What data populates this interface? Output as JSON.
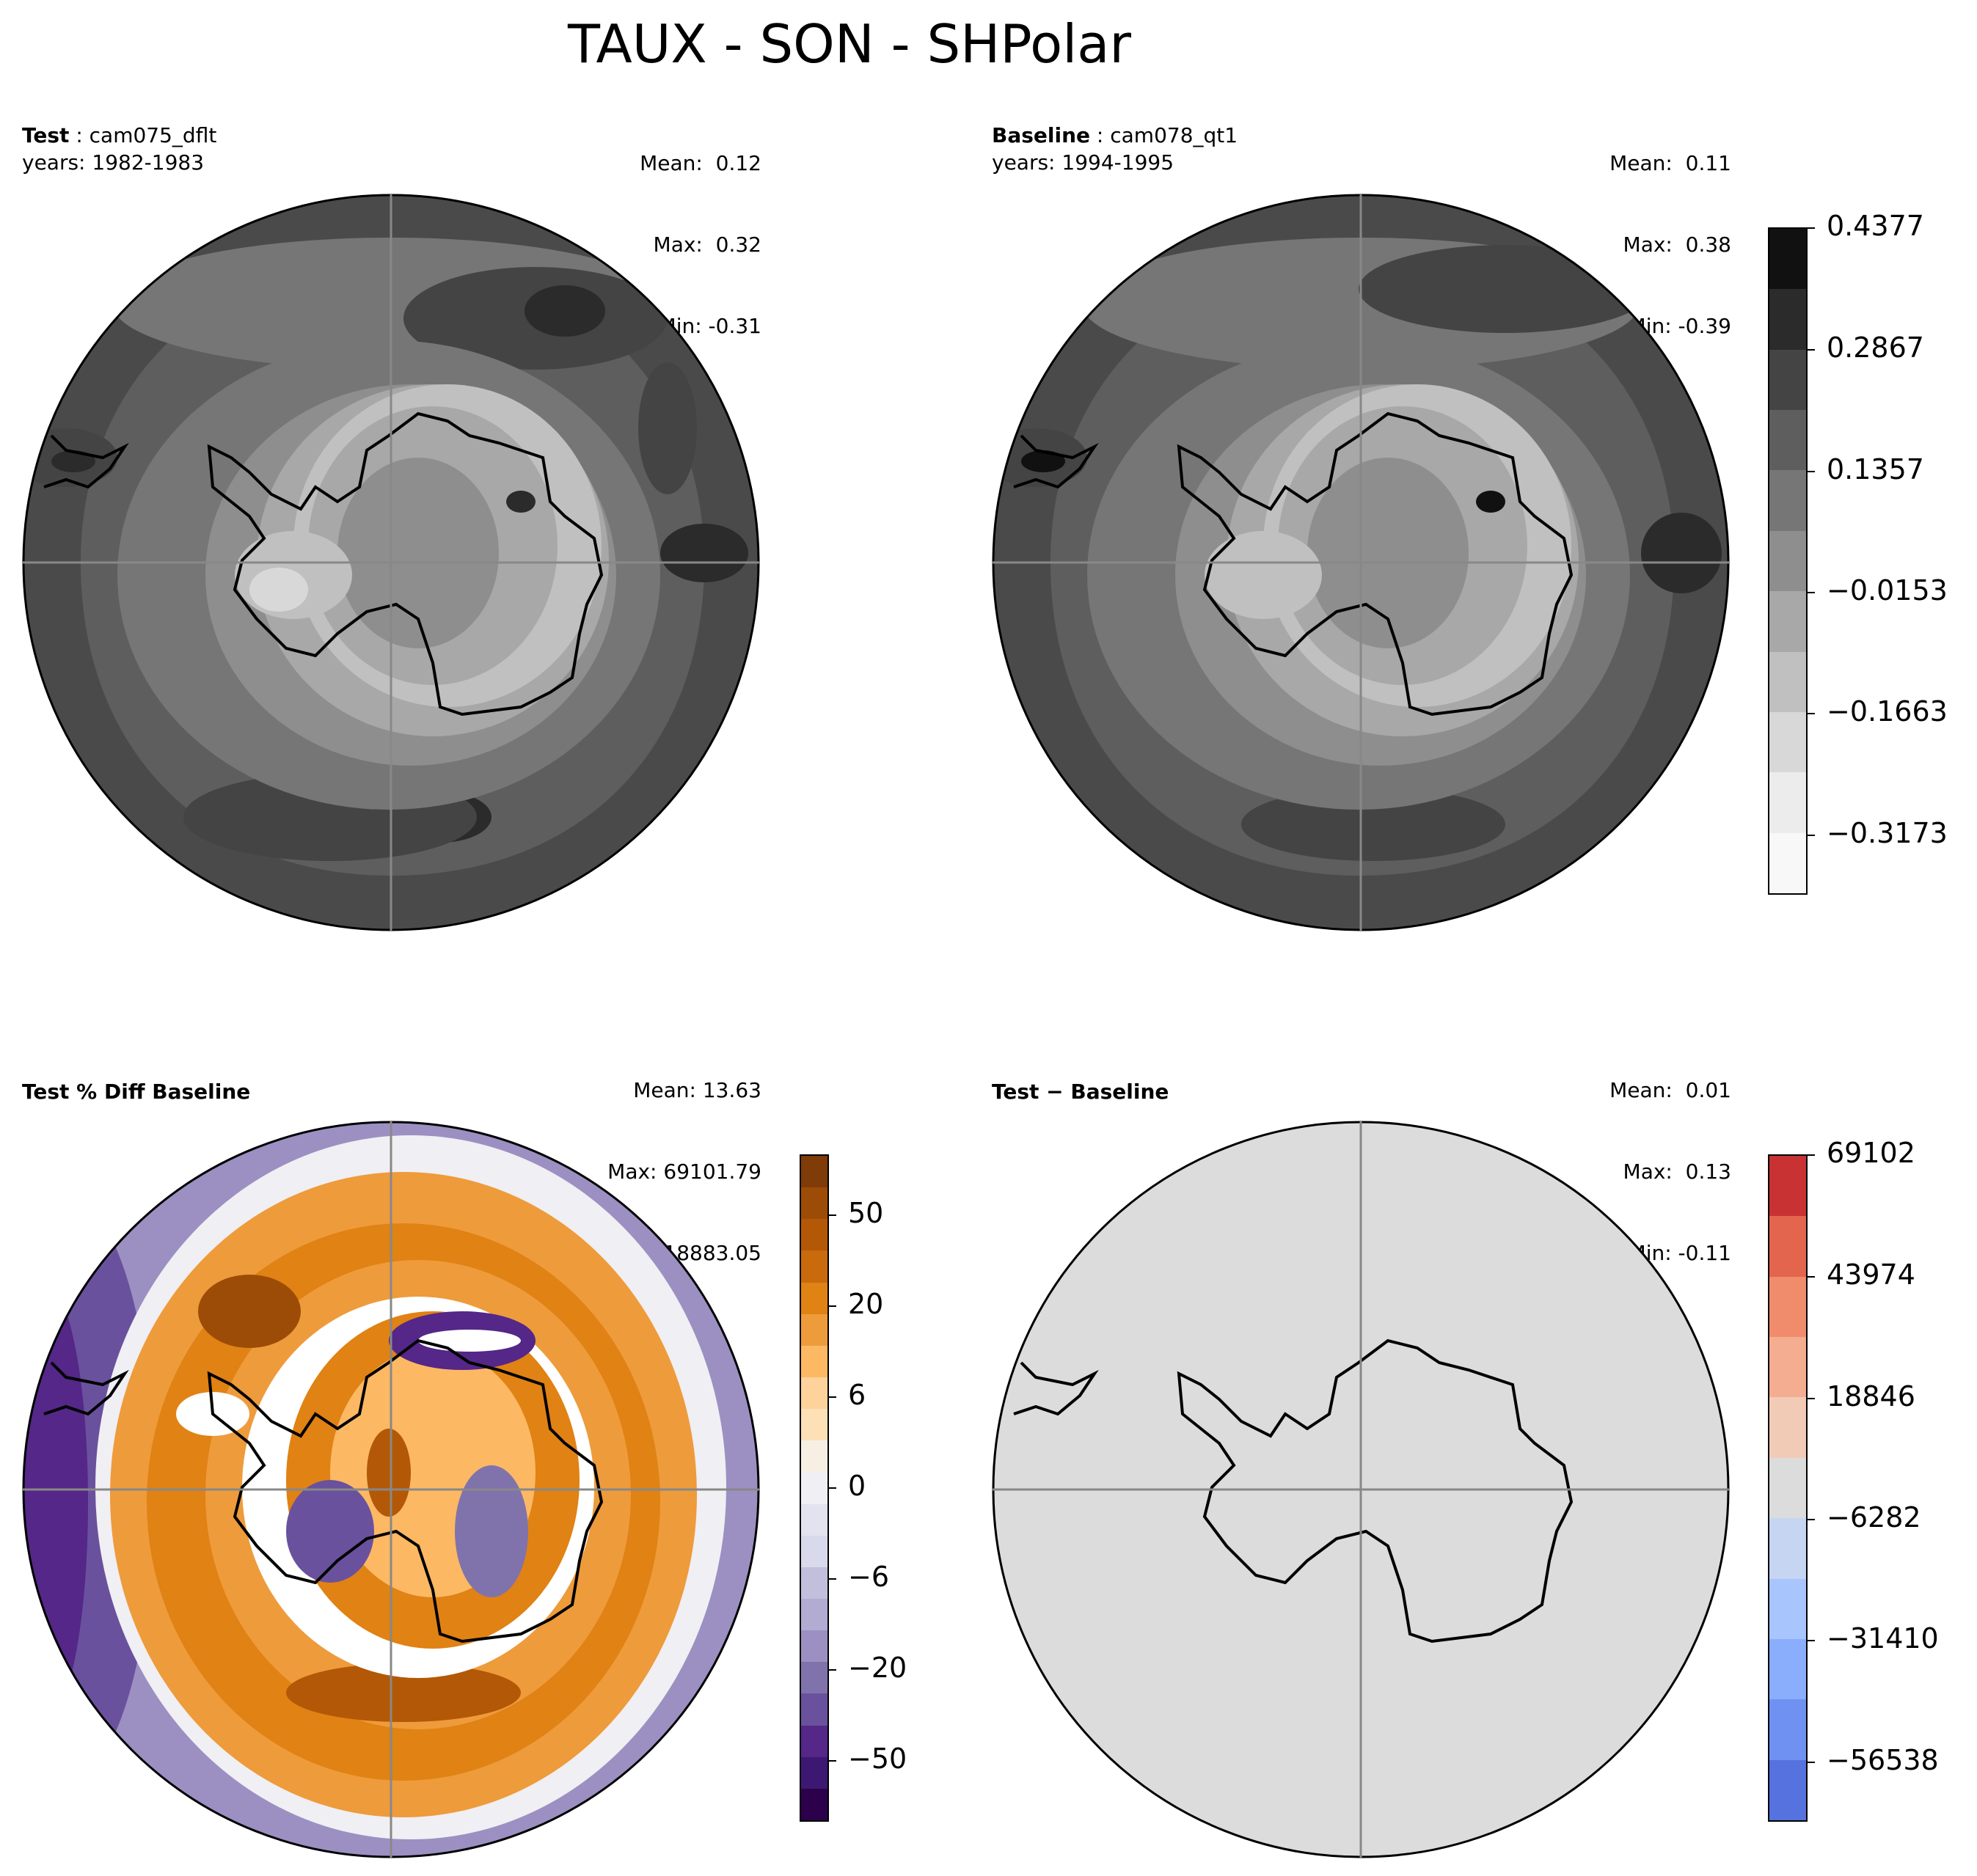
{
  "title": "TAUX - SON - SHPolar",
  "panels": {
    "test": {
      "label_bold": "Test",
      "label_name": "cam075_dflt",
      "years": "years: 1982-1983",
      "mean": "Mean:  0.12",
      "max": "Max:  0.32",
      "min": "Min: -0.31"
    },
    "baseline": {
      "label_bold": "Baseline",
      "label_name": "cam078_qt1",
      "years": "years: 1994-1995",
      "mean": "Mean:  0.11",
      "max": "Max:  0.38",
      "min": "Min: -0.39"
    },
    "pctdiff": {
      "label": "Test % Diff Baseline",
      "mean": "Mean: 13.63",
      "max": "Max: 69101.79",
      "min": "Min: -18883.05"
    },
    "diff": {
      "label": "Test − Baseline",
      "mean": "Mean:  0.01",
      "max": "Max:  0.13",
      "min": "Min: -0.11"
    }
  },
  "colorbars": {
    "gray": {
      "ticks": [
        "0.4377",
        "0.2867",
        "0.1357",
        "−0.0153",
        "−0.1663",
        "−0.3173"
      ],
      "colors": [
        "#111111",
        "#2b2b2b",
        "#444444",
        "#5e5e5e",
        "#767676",
        "#8e8e8e",
        "#a8a8a8",
        "#c0c0c0",
        "#d8d8d8",
        "#ececec",
        "#f8f8f8"
      ]
    },
    "puor": {
      "ticks": [
        "50",
        "20",
        "6",
        "0",
        "−6",
        "−20",
        "−50"
      ],
      "colors": [
        "#7f3b08",
        "#9d4c07",
        "#b35806",
        "#c96a0d",
        "#e08214",
        "#ee9b3b",
        "#fdb863",
        "#fdd29b",
        "#fee0b6",
        "#f7efe4",
        "#f0eff3",
        "#e3e2ef",
        "#d8daeb",
        "#c2bfdd",
        "#b2abd2",
        "#9c90c2",
        "#8073ac",
        "#6a519d",
        "#542788",
        "#3d1872",
        "#2d004b"
      ]
    },
    "coolwarm": {
      "ticks": [
        "69102",
        "43974",
        "18846",
        "−6282",
        "−31410",
        "−56538"
      ],
      "colors": [
        "#c83232",
        "#e3654e",
        "#f08c6c",
        "#f4ad90",
        "#f2cbb7",
        "#dcdcdc",
        "#c5d5f2",
        "#a8c5fe",
        "#8aaefc",
        "#6f92f2",
        "#5572df"
      ]
    }
  }
}
